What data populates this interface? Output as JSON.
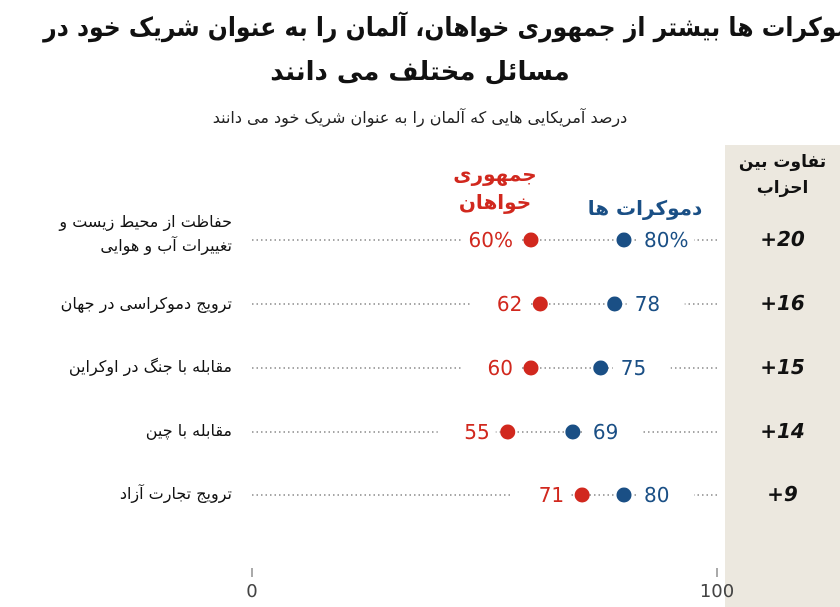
{
  "title_line1": "دموکرات ها بیشتر از جمهوری خواهان، آلمان را به عنوان شریک خود در",
  "title_line2": "مسائل مختلف می دانند",
  "subtitle": "درصد آمریکایی هایی که آلمان را به عنوان شریک خود می دانند",
  "panel_header": "تفاوت بین احزاب",
  "colors": {
    "democrats": "#1a4f85",
    "republicans": "#d1281e",
    "panel": "#ece8df"
  },
  "chart_data": {
    "type": "dot",
    "categories": [
      "حفاظت از محیط زیست و تغییرات آب و هوایی",
      "ترویج دموکراسی در جهان",
      "مقابله با جنگ در اوکراین",
      "مقابله با چین",
      "ترویج تجارت آزاد"
    ],
    "series": [
      {
        "name": "دموکرات ها",
        "values": [
          80,
          78,
          75,
          69,
          80
        ],
        "labels": [
          "80%",
          "78",
          "75",
          "69",
          "80"
        ]
      },
      {
        "name": "جمهوری خواهان",
        "values": [
          60,
          62,
          60,
          55,
          71
        ],
        "labels": [
          "60%",
          "62",
          "60",
          "55",
          "71"
        ]
      }
    ],
    "differences": [
      "+20",
      "+16",
      "+15",
      "+14",
      "+9"
    ],
    "xlim": [
      0,
      100
    ],
    "xticks": [
      "0",
      "100"
    ],
    "grid": false
  }
}
